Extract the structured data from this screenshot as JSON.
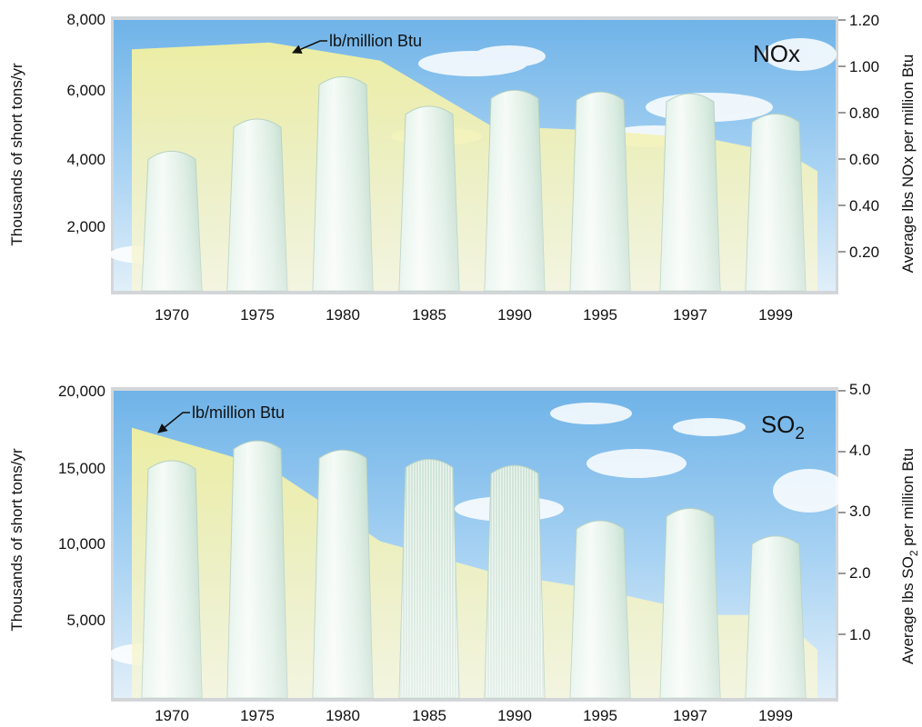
{
  "chart_data": [
    {
      "type": "bar",
      "title": "NOx",
      "ylabel": "Thousands of short tons/yr",
      "y2label": "Average lbs NOx per million Btu",
      "categories": [
        "1970",
        "1975",
        "1980",
        "1985",
        "1990",
        "1995",
        "1997",
        "1999"
      ],
      "ylim": [
        0,
        8000
      ],
      "yticks": [
        "2,000",
        "4,000",
        "6,000",
        "8,000"
      ],
      "y2lim": [
        0,
        1.2
      ],
      "y2ticks": [
        "0.20",
        "0.40",
        "0.60",
        "0.80",
        "1.00",
        "1.20"
      ],
      "area_label": "lb/million Btu",
      "series": [
        {
          "kind": "bar",
          "values": [
            4150,
            5100,
            6350,
            5480,
            5950,
            5900,
            5850,
            5250
          ]
        },
        {
          "kind": "area",
          "axis": "secondary",
          "x": [
            1968.2,
            1975,
            1980,
            1985,
            1990,
            1995,
            1997,
            1999,
            2000
          ],
          "values": [
            1.07,
            1.1,
            1.02,
            0.73,
            0.71,
            0.67,
            0.63,
            0.57,
            0.53
          ]
        }
      ],
      "grid": false
    },
    {
      "type": "bar",
      "title": "SO",
      "title_sub": "2",
      "ylabel": "Thousands of short tons/yr",
      "y2label": "Average lbs SO",
      "y2label_sub": "2",
      "y2label_tail": " per million Btu",
      "categories": [
        "1970",
        "1975",
        "1980",
        "1985",
        "1990",
        "1995",
        "1997",
        "1999"
      ],
      "ylim": [
        0,
        20000
      ],
      "yticks": [
        "5,000",
        "10,000",
        "15,000",
        "20,000"
      ],
      "y2lim": [
        0,
        5.0
      ],
      "y2ticks": [
        "1.0",
        "2.0",
        "3.0",
        "4.0",
        "5.0"
      ],
      "area_label": "lb/million Btu",
      "series": [
        {
          "kind": "bar",
          "values": [
            15500,
            16800,
            16200,
            15600,
            15200,
            11600,
            12400,
            10600
          ]
        },
        {
          "kind": "area",
          "axis": "secondary",
          "x": [
            1968.2,
            1975,
            1980,
            1985,
            1990,
            1995,
            1997,
            1999,
            2000
          ],
          "values": [
            4.4,
            3.75,
            2.55,
            2.05,
            1.75,
            1.35,
            1.35,
            1.0,
            0.78
          ]
        }
      ],
      "grid": false
    }
  ]
}
